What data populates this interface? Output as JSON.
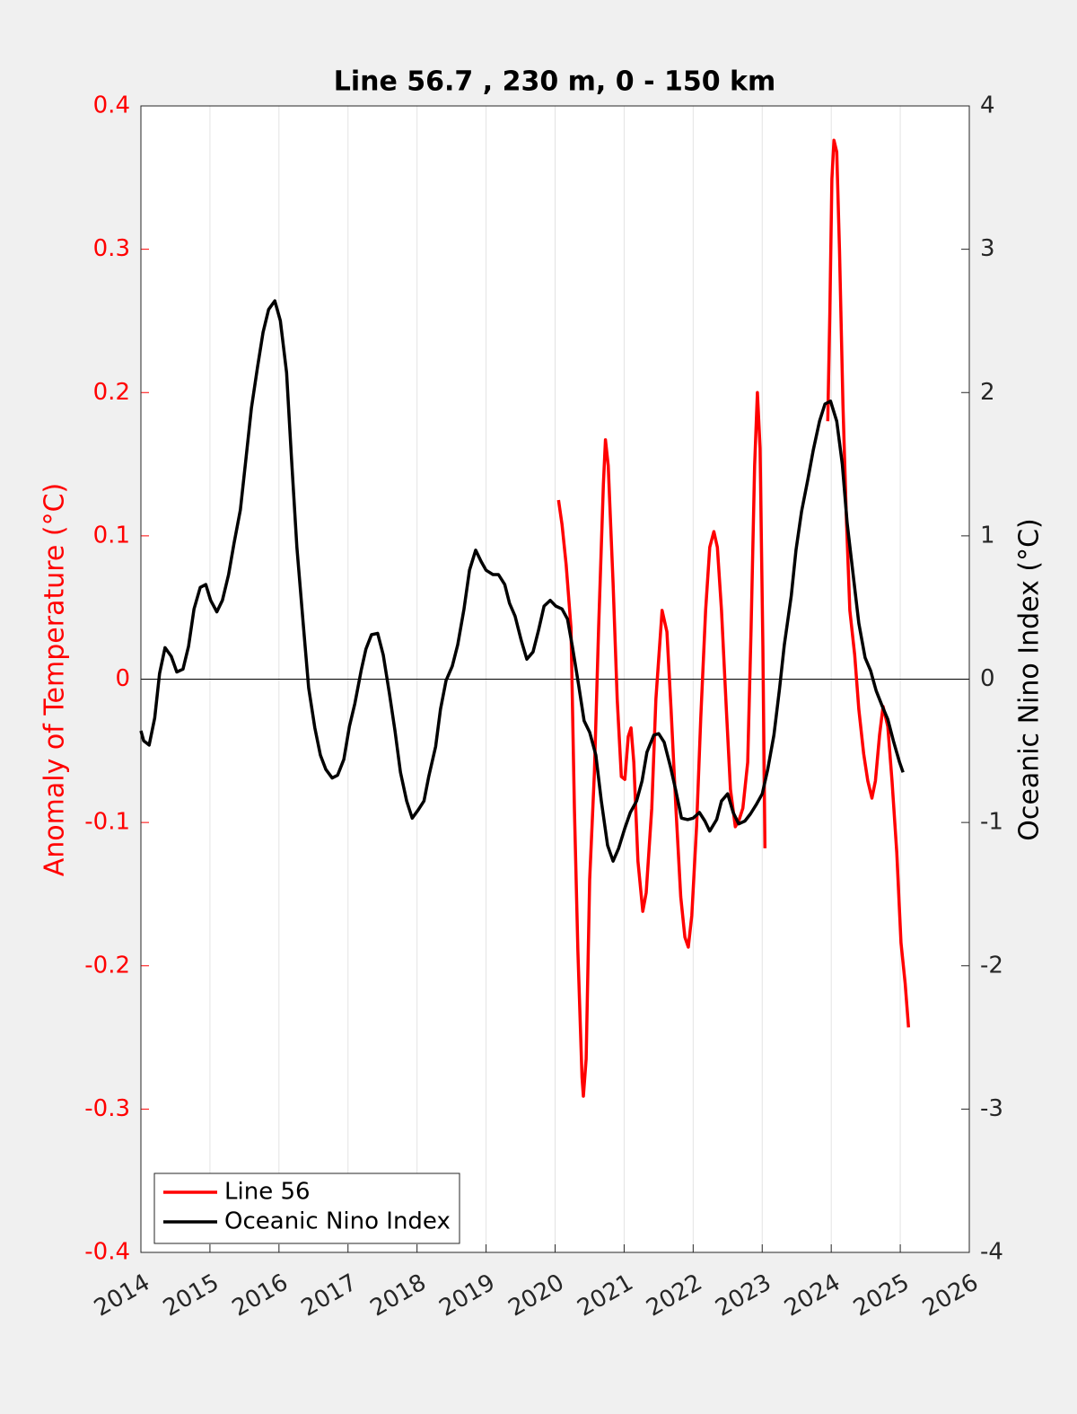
{
  "chart_data": {
    "type": "line",
    "title": "Line 56.7 , 230 m, 0 - 150 km",
    "ylabel": "Anomaly of Temperature (°C)",
    "y2label": "Oceanic Nino Index (°C)",
    "xlim": [
      2014,
      2026
    ],
    "xticks": [
      2014,
      2015,
      2016,
      2017,
      2018,
      2019,
      2020,
      2021,
      2022,
      2023,
      2024,
      2025,
      2026
    ],
    "ylim": [
      -0.4,
      0.4
    ],
    "yticks": [
      -0.4,
      -0.3,
      -0.2,
      -0.1,
      0,
      0.1,
      0.2,
      0.3,
      0.4
    ],
    "y2lim": [
      -4,
      4
    ],
    "y2ticks": [
      -4,
      -3,
      -2,
      -1,
      0,
      1,
      2,
      3,
      4
    ],
    "grid": true,
    "zero_line": true,
    "legend": "lower left",
    "ycolor": "#ff0000",
    "series": [
      {
        "name": "Line 56",
        "color": "#ff0000",
        "x": [
          2020.05,
          2020.1,
          2020.16,
          2020.23,
          2020.28,
          2020.33,
          2020.39,
          2020.41,
          2020.45,
          2020.5,
          2020.57,
          2020.63,
          2020.7,
          2020.73,
          2020.77,
          2020.84,
          2020.9,
          2020.96,
          2021.01,
          2021.06,
          2021.1,
          2021.14,
          2021.2,
          2021.27,
          2021.32,
          2021.4,
          2021.46,
          2021.55,
          2021.62,
          2021.68,
          2021.75,
          2021.82,
          2021.88,
          2021.93,
          2021.98,
          2022.05,
          2022.11,
          2022.18,
          2022.24,
          2022.3,
          2022.35,
          2022.41,
          2022.48,
          2022.54,
          2022.61,
          2022.66,
          2022.72,
          2022.79,
          2022.84,
          2022.89,
          2022.93,
          2022.97,
          2023.01,
          2023.04,
          2023.5,
          2023.95,
          2023.98,
          2024.01,
          2024.04,
          2024.08,
          2024.12,
          2024.17,
          2024.22,
          2024.27,
          2024.34,
          2024.4,
          2024.47,
          2024.53,
          2024.59,
          2024.64,
          2024.7,
          2024.75,
          2024.82,
          2024.88,
          2024.95,
          2025.01,
          2025.07,
          2025.12
        ],
        "values": [
          0.125,
          0.108,
          0.08,
          0.036,
          -0.09,
          -0.19,
          -0.278,
          -0.291,
          -0.265,
          -0.14,
          -0.065,
          0.036,
          0.136,
          0.167,
          0.149,
          0.067,
          -0.014,
          -0.068,
          -0.07,
          -0.04,
          -0.034,
          -0.058,
          -0.127,
          -0.162,
          -0.149,
          -0.09,
          -0.014,
          0.048,
          0.033,
          -0.021,
          -0.09,
          -0.152,
          -0.18,
          -0.187,
          -0.165,
          -0.102,
          -0.027,
          0.048,
          0.092,
          0.103,
          0.092,
          0.048,
          -0.021,
          -0.077,
          -0.103,
          -0.099,
          -0.09,
          -0.058,
          0.036,
          0.149,
          0.2,
          0.161,
          0.023,
          -0.118,
          null,
          0.18,
          0.255,
          0.349,
          0.376,
          0.368,
          0.299,
          0.192,
          0.111,
          0.048,
          0.017,
          -0.021,
          -0.052,
          -0.071,
          -0.083,
          -0.071,
          -0.039,
          -0.019,
          -0.033,
          -0.071,
          -0.121,
          -0.184,
          -0.212,
          -0.243
        ]
      },
      {
        "name": "Oceanic Nino Index",
        "color": "#000000",
        "axis": "y2",
        "x": [
          2014.0,
          2014.04,
          2014.12,
          2014.2,
          2014.27,
          2014.35,
          2014.44,
          2014.52,
          2014.61,
          2014.69,
          2014.77,
          2014.86,
          2014.94,
          2015.01,
          2015.1,
          2015.18,
          2015.27,
          2015.35,
          2015.44,
          2015.52,
          2015.6,
          2015.69,
          2015.77,
          2015.85,
          2015.94,
          2016.02,
          2016.11,
          2016.18,
          2016.26,
          2016.35,
          2016.43,
          2016.52,
          2016.6,
          2016.68,
          2016.77,
          2016.85,
          2016.94,
          2017.02,
          2017.1,
          2017.19,
          2017.26,
          2017.34,
          2017.43,
          2017.51,
          2017.6,
          2017.68,
          2017.76,
          2017.85,
          2017.93,
          2018.02,
          2018.1,
          2018.17,
          2018.27,
          2018.34,
          2018.42,
          2018.51,
          2018.59,
          2018.68,
          2018.76,
          2018.85,
          2018.93,
          2019.0,
          2019.1,
          2019.18,
          2019.27,
          2019.34,
          2019.42,
          2019.51,
          2019.59,
          2019.68,
          2019.76,
          2019.84,
          2019.93,
          2020.01,
          2020.1,
          2020.18,
          2020.25,
          2020.34,
          2020.42,
          2020.5,
          2020.59,
          2020.67,
          2020.76,
          2020.84,
          2020.92,
          2021.01,
          2021.09,
          2021.18,
          2021.26,
          2021.33,
          2021.43,
          2021.5,
          2021.58,
          2021.67,
          2021.75,
          2021.83,
          2021.92,
          2022.0,
          2022.09,
          2022.17,
          2022.24,
          2022.34,
          2022.41,
          2022.5,
          2022.58,
          2022.66,
          2022.75,
          2022.83,
          2022.92,
          2023.0,
          2023.08,
          2023.17,
          2023.25,
          2023.32,
          2023.42,
          2023.49,
          2023.57,
          2023.66,
          2023.74,
          2023.83,
          2023.91,
          2023.99,
          2024.08,
          2024.16,
          2024.23,
          2024.33,
          2024.4,
          2024.49,
          2024.57,
          2024.65,
          2024.74,
          2024.82,
          2024.9,
          2024.99,
          2025.04
        ],
        "values": [
          -0.36,
          -0.43,
          -0.46,
          -0.27,
          0.04,
          0.22,
          0.16,
          0.05,
          0.07,
          0.23,
          0.49,
          0.64,
          0.66,
          0.55,
          0.47,
          0.55,
          0.73,
          0.95,
          1.18,
          1.53,
          1.89,
          2.18,
          2.42,
          2.58,
          2.64,
          2.5,
          2.14,
          1.55,
          0.92,
          0.39,
          -0.06,
          -0.34,
          -0.53,
          -0.63,
          -0.69,
          -0.67,
          -0.56,
          -0.33,
          -0.17,
          0.06,
          0.21,
          0.31,
          0.32,
          0.17,
          -0.1,
          -0.36,
          -0.65,
          -0.85,
          -0.97,
          -0.91,
          -0.85,
          -0.68,
          -0.47,
          -0.21,
          -0.01,
          0.09,
          0.24,
          0.49,
          0.76,
          0.9,
          0.82,
          0.76,
          0.73,
          0.73,
          0.66,
          0.53,
          0.44,
          0.27,
          0.14,
          0.19,
          0.34,
          0.51,
          0.55,
          0.51,
          0.49,
          0.42,
          0.23,
          -0.04,
          -0.29,
          -0.37,
          -0.53,
          -0.85,
          -1.16,
          -1.27,
          -1.18,
          -1.04,
          -0.93,
          -0.85,
          -0.71,
          -0.51,
          -0.39,
          -0.38,
          -0.44,
          -0.61,
          -0.78,
          -0.97,
          -0.98,
          -0.97,
          -0.93,
          -0.99,
          -1.06,
          -0.98,
          -0.85,
          -0.8,
          -0.93,
          -1.01,
          -0.99,
          -0.94,
          -0.87,
          -0.8,
          -0.63,
          -0.39,
          -0.07,
          0.24,
          0.58,
          0.9,
          1.17,
          1.39,
          1.6,
          1.8,
          1.92,
          1.94,
          1.8,
          1.5,
          1.09,
          0.68,
          0.39,
          0.15,
          0.06,
          -0.08,
          -0.19,
          -0.28,
          -0.43,
          -0.58,
          -0.65
        ]
      }
    ]
  }
}
